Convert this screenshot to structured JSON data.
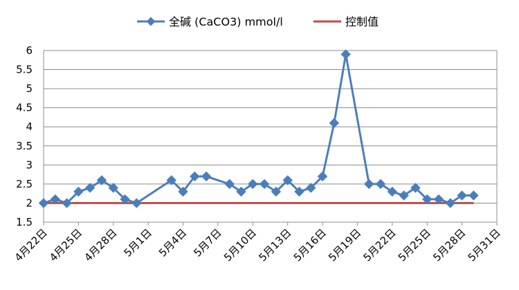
{
  "chart_data": {
    "type": "line",
    "title": "",
    "xlabel": "",
    "ylabel": "",
    "ylim": [
      1.5,
      6
    ],
    "y_ticks": [
      "1.5",
      "2",
      "2.5",
      "3",
      "3.5",
      "4",
      "4.5",
      "5",
      "5.5",
      "6"
    ],
    "grid": true,
    "legend_position": "top",
    "x_start": "4月22日",
    "x_end": "5月31日",
    "x_tick_labels": [
      "4月22日",
      "4月25日",
      "4月28日",
      "5月1日",
      "5月4日",
      "5月7日",
      "5月10日",
      "5月13日",
      "5月16日",
      "5月19日",
      "5月22日",
      "5月25日",
      "5月28日",
      "5月31日"
    ],
    "series": [
      {
        "name": "全碱 (CaCO3) mmol/l",
        "color": "#4a7ebb",
        "marker": "diamond",
        "points": [
          {
            "x": "4月22日",
            "y": 2.0
          },
          {
            "x": "4月23日",
            "y": 2.1
          },
          {
            "x": "4月24日",
            "y": 2.0
          },
          {
            "x": "4月25日",
            "y": 2.3
          },
          {
            "x": "4月26日",
            "y": 2.4
          },
          {
            "x": "4月27日",
            "y": 2.6
          },
          {
            "x": "4月28日",
            "y": 2.4
          },
          {
            "x": "4月29日",
            "y": 2.1
          },
          {
            "x": "4月30日",
            "y": 2.0
          },
          {
            "x": "5月3日",
            "y": 2.6
          },
          {
            "x": "5月4日",
            "y": 2.3
          },
          {
            "x": "5月5日",
            "y": 2.7
          },
          {
            "x": "5月6日",
            "y": 2.7
          },
          {
            "x": "5月8日",
            "y": 2.5
          },
          {
            "x": "5月9日",
            "y": 2.3
          },
          {
            "x": "5月10日",
            "y": 2.5
          },
          {
            "x": "5月11日",
            "y": 2.5
          },
          {
            "x": "5月12日",
            "y": 2.3
          },
          {
            "x": "5月13日",
            "y": 2.6
          },
          {
            "x": "5月14日",
            "y": 2.3
          },
          {
            "x": "5月15日",
            "y": 2.4
          },
          {
            "x": "5月16日",
            "y": 2.7
          },
          {
            "x": "5月17日",
            "y": 4.1
          },
          {
            "x": "5月18日",
            "y": 5.9
          },
          {
            "x": "5月20日",
            "y": 2.5
          },
          {
            "x": "5月21日",
            "y": 2.5
          },
          {
            "x": "5月22日",
            "y": 2.3
          },
          {
            "x": "5月23日",
            "y": 2.2
          },
          {
            "x": "5月24日",
            "y": 2.4
          },
          {
            "x": "5月25日",
            "y": 2.1
          },
          {
            "x": "5月26日",
            "y": 2.1
          },
          {
            "x": "5月27日",
            "y": 2.0
          },
          {
            "x": "5月28日",
            "y": 2.2
          },
          {
            "x": "5月29日",
            "y": 2.2
          }
        ]
      },
      {
        "name": "控制值",
        "color": "#be4b48",
        "marker": "none",
        "points": [
          {
            "x": "4月22日",
            "y": 2.0
          },
          {
            "x": "5月29日",
            "y": 2.0
          }
        ]
      }
    ]
  }
}
